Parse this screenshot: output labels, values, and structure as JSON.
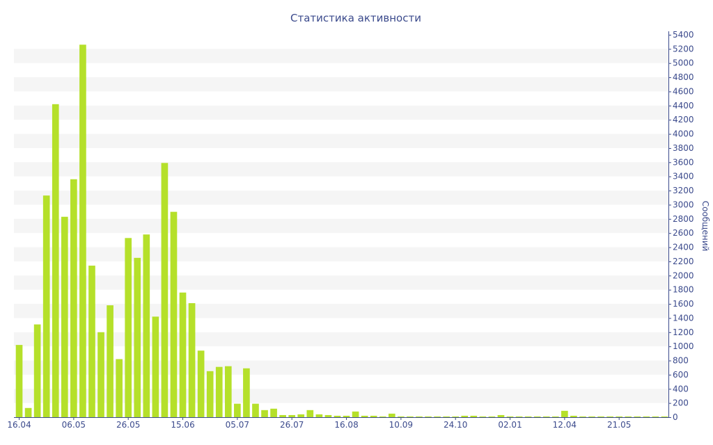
{
  "chart_data": {
    "type": "bar",
    "title": "Статистика активности",
    "xlabel": "",
    "ylabel": "Сообщений",
    "ylim": [
      0,
      5400
    ],
    "y_ticks": [
      0,
      200,
      400,
      600,
      800,
      1000,
      1200,
      1400,
      1600,
      1800,
      2000,
      2200,
      2400,
      2600,
      2800,
      3000,
      3200,
      3400,
      3600,
      3800,
      4000,
      4200,
      4400,
      4600,
      4800,
      5000,
      5200,
      5400
    ],
    "y_axis_position": "right",
    "grid": "alternating horizontal bands",
    "bar_color": "#b5e02a",
    "band_color": "#f5f5f5",
    "axis_color": "#3b4a8c",
    "x_tick_labels": [
      {
        "label": "16.04",
        "index": 0
      },
      {
        "label": "06.05",
        "index": 6
      },
      {
        "label": "26.05",
        "index": 12
      },
      {
        "label": "15.06",
        "index": 18
      },
      {
        "label": "05.07",
        "index": 24
      },
      {
        "label": "26.07",
        "index": 30
      },
      {
        "label": "16.08",
        "index": 36
      },
      {
        "label": "10.09",
        "index": 42
      },
      {
        "label": "24.10",
        "index": 48
      },
      {
        "label": "02.01",
        "index": 54
      },
      {
        "label": "12.04",
        "index": 60
      },
      {
        "label": "21.05",
        "index": 66
      }
    ],
    "values": [
      1020,
      130,
      1310,
      3130,
      4420,
      2830,
      3360,
      5260,
      2140,
      1200,
      1580,
      820,
      2530,
      2250,
      2580,
      1420,
      3590,
      2900,
      1760,
      1610,
      940,
      650,
      710,
      720,
      190,
      690,
      190,
      100,
      120,
      30,
      30,
      40,
      100,
      40,
      30,
      20,
      20,
      80,
      20,
      20,
      10,
      50,
      10,
      10,
      10,
      10,
      10,
      10,
      10,
      20,
      20,
      10,
      10,
      30,
      10,
      10,
      10,
      10,
      10,
      10,
      90,
      20,
      10,
      10,
      10,
      10,
      10,
      10,
      10,
      10,
      10,
      10
    ]
  }
}
